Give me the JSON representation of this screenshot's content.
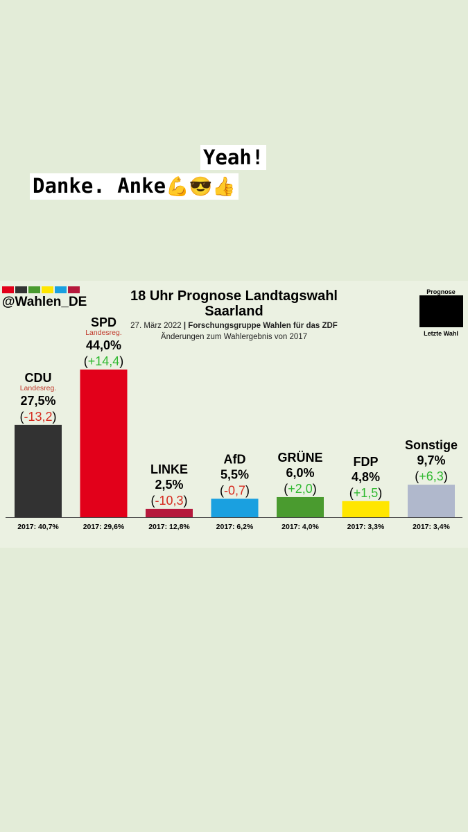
{
  "sticker": {
    "line1": "Yeah!",
    "line2_text": "Danke. Anke",
    "line2_emojis": "💪😎👍"
  },
  "header": {
    "logo_colors": [
      "#e2001a",
      "#333333",
      "#4a9b2f",
      "#ffe600",
      "#1aa0e0",
      "#b5193c"
    ],
    "handle": "@Wahlen_DE",
    "title": "18 Uhr Prognose Landtagswahl Saarland",
    "date": "27. März 2022",
    "separator": "|",
    "source": "Forschungsgruppe Wahlen für das ZDF",
    "note": "Änderungen zum Wahlergebnis von 2017",
    "legend_top": "Prognose",
    "legend_bottom": "Letzte Wahl"
  },
  "chart_data": {
    "type": "bar",
    "title": "18 Uhr Prognose Landtagswahl Saarland",
    "categories": [
      "CDU",
      "SPD",
      "LINKE",
      "AfD",
      "GRÜNE",
      "FDP",
      "Sonstige"
    ],
    "values": [
      27.5,
      44.0,
      2.5,
      5.5,
      6.0,
      4.8,
      9.7
    ],
    "value_labels": [
      "27,5%",
      "44,0%",
      "2,5%",
      "5,5%",
      "6,0%",
      "4,8%",
      "9,7%"
    ],
    "changes": [
      -13.2,
      14.4,
      -10.3,
      -0.7,
      2.0,
      1.5,
      6.3
    ],
    "change_labels": [
      "-13,2",
      "+14,4",
      "-10,3",
      "-0,7",
      "+2,0",
      "+1,5",
      "+6,3"
    ],
    "notes": [
      "Landesreg.",
      "Landesreg.",
      "",
      "",
      "",
      "",
      ""
    ],
    "previous_2017": [
      40.7,
      29.6,
      12.8,
      6.2,
      4.0,
      3.3,
      3.4
    ],
    "previous_labels": [
      "2017: 40,7%",
      "2017: 29,6%",
      "2017: 12,8%",
      "2017: 6,2%",
      "2017: 4,0%",
      "2017: 3,3%",
      "2017: 3,4%"
    ],
    "colors": [
      "#323232",
      "#e2001a",
      "#b5193c",
      "#1aa0e0",
      "#4a9b2f",
      "#ffe600",
      "#b0b8cc"
    ],
    "ylim": [
      0,
      44
    ],
    "grid": false,
    "legend": "top-right"
  }
}
